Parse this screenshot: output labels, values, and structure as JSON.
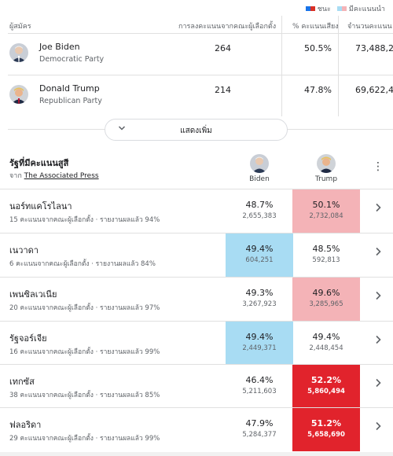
{
  "legend": {
    "won_label": "ชนะ",
    "more_votes_label": "มีคะแนนนำ",
    "colors": {
      "dem_won": "#1a73e8",
      "rep_won": "#d93025",
      "dem_lead": "#a8dcf3",
      "rep_lead": "#f4b3b7"
    }
  },
  "summary": {
    "headers": {
      "candidate": "ผู้สมัคร",
      "electoral": "การลงคะแนนจากคณะผู้เลือกตั้ง",
      "pct": "% คะแนนเสียง",
      "votes": "จำนวนคะแนน"
    },
    "candidates": [
      {
        "name": "Joe Biden",
        "party": "Democratic Party",
        "electoral_votes": "264",
        "pct": "50.5%",
        "votes": "73,488,24"
      },
      {
        "name": "Donald Trump",
        "party": "Republican Party",
        "electoral_votes": "214",
        "pct": "47.8%",
        "votes": "69,622,40"
      }
    ],
    "show_more_label": "แสดงเพิ่ม"
  },
  "battleground": {
    "title": "รัฐที่มีคะแนนสูสี",
    "source_prefix": "จาก",
    "source_name": "The Associated Press",
    "col_biden": "Biden",
    "col_trump": "Trump",
    "states": [
      {
        "name": "นอร์ทแคโรไลนา",
        "desc": "15 คะแนนจากคณะผู้เลือกตั้ง · รายงานผลแล้ว 94%",
        "biden_pct": "48.7%",
        "biden_votes": "2,655,383",
        "trump_pct": "50.1%",
        "trump_votes": "2,732,084"
      },
      {
        "name": "เนวาดา",
        "desc": "6 คะแนนจากคณะผู้เลือกตั้ง · รายงานผลแล้ว 84%",
        "biden_pct": "49.4%",
        "biden_votes": "604,251",
        "trump_pct": "48.5%",
        "trump_votes": "592,813"
      },
      {
        "name": "เพนซิลเวเนีย",
        "desc": "20 คะแนนจากคณะผู้เลือกตั้ง · รายงานผลแล้ว 97%",
        "biden_pct": "49.3%",
        "biden_votes": "3,267,923",
        "trump_pct": "49.6%",
        "trump_votes": "3,285,965"
      },
      {
        "name": "รัฐจอร์เจีย",
        "desc": "16 คะแนนจากคณะผู้เลือกตั้ง · รายงานผลแล้ว 99%",
        "biden_pct": "49.4%",
        "biden_votes": "2,449,371",
        "trump_pct": "49.4%",
        "trump_votes": "2,448,454"
      },
      {
        "name": "เทกซัส",
        "desc": "38 คะแนนจากคณะผู้เลือกตั้ง · รายงานผลแล้ว 85%",
        "biden_pct": "46.4%",
        "biden_votes": "5,211,603",
        "trump_pct": "52.2%",
        "trump_votes": "5,860,494"
      },
      {
        "name": "ฟลอริดา",
        "desc": "29 คะแนนจากคณะผู้เลือกตั้ง · รายงานผลแล้ว 99%",
        "biden_pct": "47.9%",
        "biden_votes": "5,284,377",
        "trump_pct": "51.2%",
        "trump_votes": "5,658,690"
      }
    ]
  }
}
